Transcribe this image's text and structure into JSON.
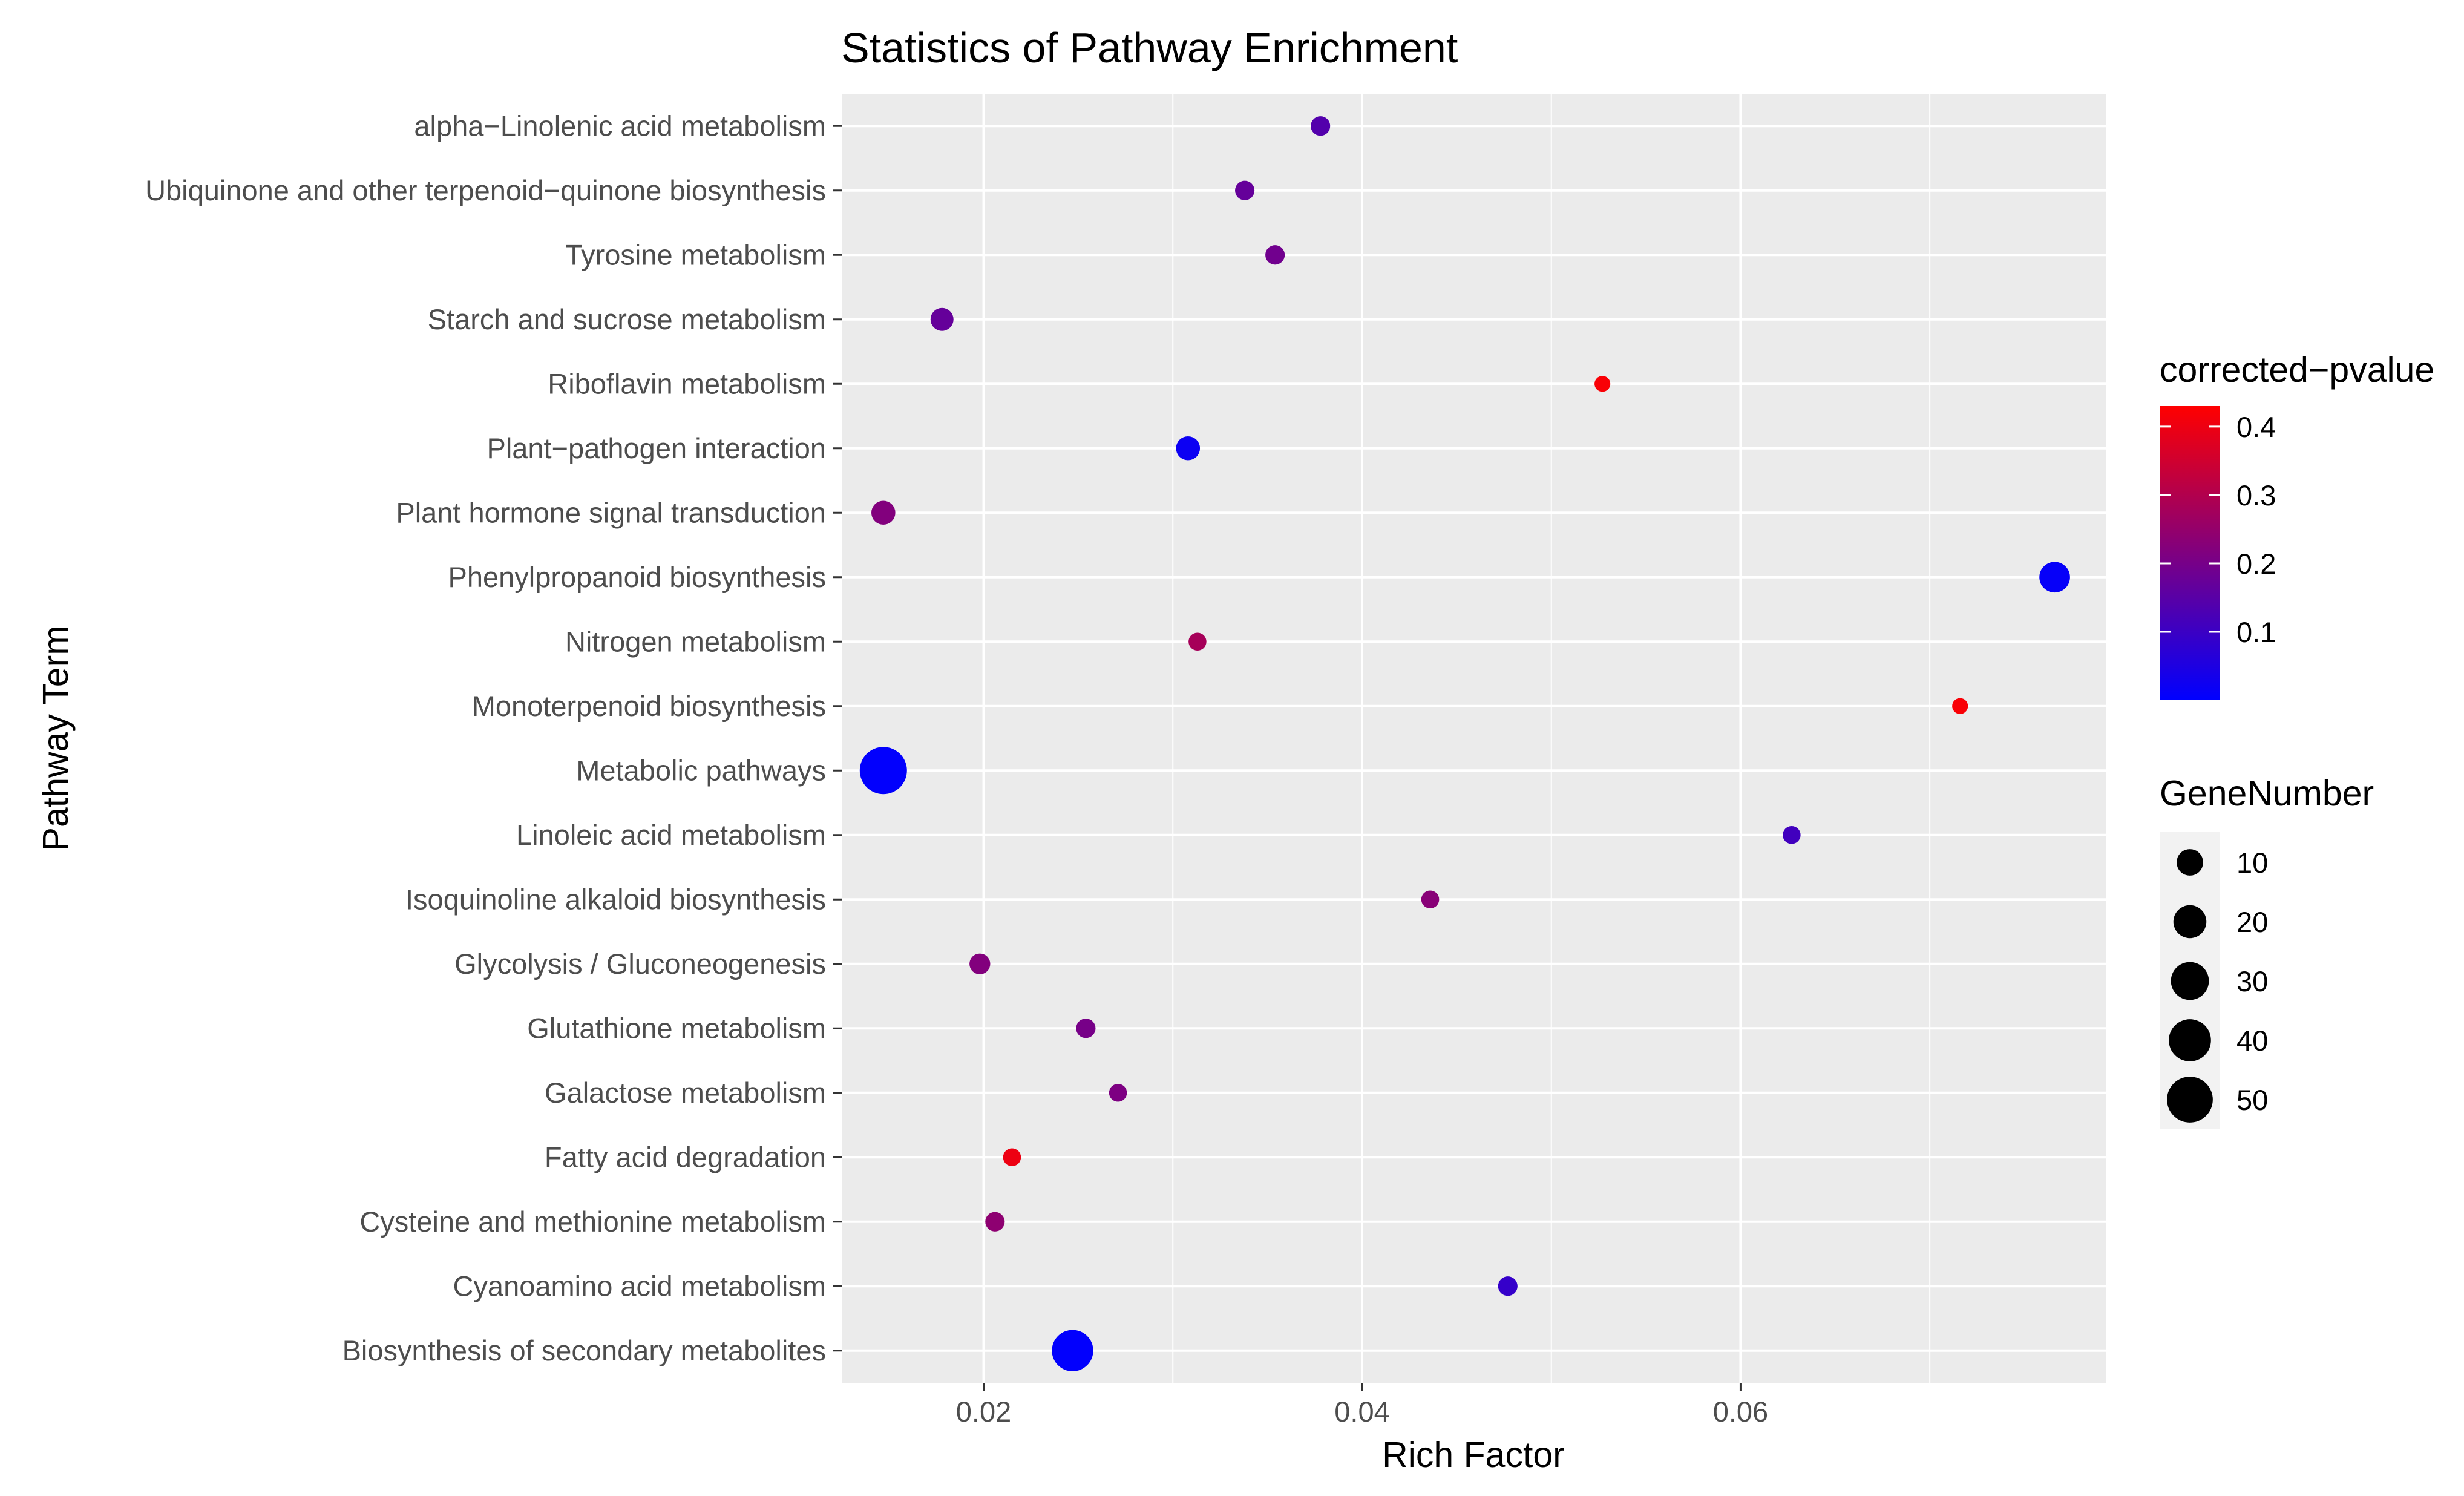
{
  "chart_data": {
    "type": "scatter",
    "title": "Statistics of Pathway Enrichment",
    "xlabel": "Rich Factor",
    "ylabel": "Pathway Term",
    "xlim": [
      0.0125,
      0.0793
    ],
    "xticks": [
      0.02,
      0.04,
      0.06
    ],
    "xtick_labels": [
      "0.02",
      "0.04",
      "0.06"
    ],
    "grid": true,
    "color_legend": {
      "title": "corrected−pvalue",
      "low_color": "#0000ff",
      "high_color": "#ff0000",
      "range": [
        0.0,
        0.43
      ],
      "ticks": [
        0.4,
        0.3,
        0.2,
        0.1
      ],
      "tick_labels": [
        "0.4",
        "0.3",
        "0.2",
        "0.1"
      ]
    },
    "size_legend": {
      "title": "GeneNumber",
      "values": [
        10,
        20,
        30,
        40,
        50
      ],
      "labels": [
        "10",
        "20",
        "30",
        "40",
        "50"
      ]
    },
    "points": [
      {
        "term": "alpha−Linolenic acid metabolism",
        "rich_factor": 0.0378,
        "pvalue": 0.14,
        "gene_number": 3
      },
      {
        "term": "Ubiquinone and other terpenoid−quinone biosynthesis",
        "rich_factor": 0.0338,
        "pvalue": 0.17,
        "gene_number": 3
      },
      {
        "term": "Tyrosine metabolism",
        "rich_factor": 0.0354,
        "pvalue": 0.19,
        "gene_number": 3
      },
      {
        "term": "Starch and sucrose metabolism",
        "rich_factor": 0.0178,
        "pvalue": 0.17,
        "gene_number": 6
      },
      {
        "term": "Riboflavin metabolism",
        "rich_factor": 0.0527,
        "pvalue": 0.42,
        "gene_number": 1
      },
      {
        "term": "Plant−pathogen interaction",
        "rich_factor": 0.0308,
        "pvalue": 0.02,
        "gene_number": 7
      },
      {
        "term": "Plant hormone signal transduction",
        "rich_factor": 0.0147,
        "pvalue": 0.22,
        "gene_number": 7
      },
      {
        "term": "Phenylpropanoid biosynthesis",
        "rich_factor": 0.0766,
        "pvalue": 0.01,
        "gene_number": 16
      },
      {
        "term": "Nitrogen metabolism",
        "rich_factor": 0.0313,
        "pvalue": 0.28,
        "gene_number": 2
      },
      {
        "term": "Monoterpenoid biosynthesis",
        "rich_factor": 0.0716,
        "pvalue": 0.42,
        "gene_number": 1
      },
      {
        "term": "Metabolic pathways",
        "rich_factor": 0.0147,
        "pvalue": 0.003,
        "gene_number": 54
      },
      {
        "term": "Linoleic acid metabolism",
        "rich_factor": 0.0627,
        "pvalue": 0.11,
        "gene_number": 2
      },
      {
        "term": "Isoquinoline alkaloid biosynthesis",
        "rich_factor": 0.0436,
        "pvalue": 0.23,
        "gene_number": 2
      },
      {
        "term": "Glycolysis / Gluconeogenesis",
        "rich_factor": 0.0198,
        "pvalue": 0.22,
        "gene_number": 4
      },
      {
        "term": "Glutathione metabolism",
        "rich_factor": 0.0254,
        "pvalue": 0.2,
        "gene_number": 3
      },
      {
        "term": "Galactose metabolism",
        "rich_factor": 0.0271,
        "pvalue": 0.21,
        "gene_number": 2
      },
      {
        "term": "Fatty acid degradation",
        "rich_factor": 0.0215,
        "pvalue": 0.4,
        "gene_number": 2
      },
      {
        "term": "Cysteine and methionine metabolism",
        "rich_factor": 0.0206,
        "pvalue": 0.24,
        "gene_number": 3
      },
      {
        "term": "Cyanoamino acid metabolism",
        "rich_factor": 0.0477,
        "pvalue": 0.09,
        "gene_number": 3
      },
      {
        "term": "Biosynthesis of secondary metabolites",
        "rich_factor": 0.0247,
        "pvalue": 0.003,
        "gene_number": 38
      }
    ]
  }
}
